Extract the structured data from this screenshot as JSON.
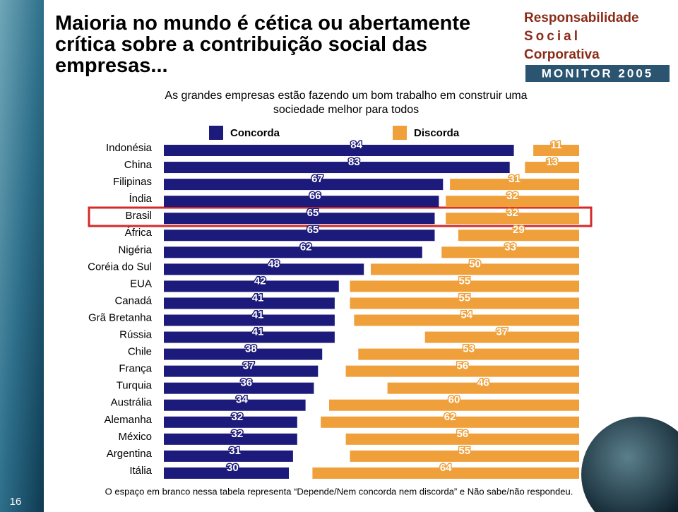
{
  "chart_data": {
    "type": "bar",
    "orientation": "horizontal",
    "title": "Maioria no mundo é cética ou abertamente crítica sobre a contribuição social das empresas...",
    "subtitle": "As grandes empresas estão fazendo um bom trabalho em construir uma sociedade melhor para todos",
    "categories": [
      "Indonésia",
      "China",
      "Filipinas",
      "Índia",
      "Brasil",
      "África",
      "Nigéria",
      "Coréia do Sul",
      "EUA",
      "Canadá",
      "Grã Bretanha",
      "Rússia",
      "Chile",
      "França",
      "Turquia",
      "Austrália",
      "Alemanha",
      "México",
      "Argentina",
      "Itália"
    ],
    "series": [
      {
        "name": "Concorda",
        "color": "#1c1a7a",
        "values": [
          84,
          83,
          67,
          66,
          65,
          65,
          62,
          48,
          42,
          41,
          41,
          41,
          38,
          37,
          36,
          34,
          32,
          32,
          31,
          30
        ]
      },
      {
        "name": "Discorda",
        "color": "#f0a03a",
        "values": [
          11,
          13,
          31,
          32,
          32,
          29,
          33,
          50,
          55,
          55,
          54,
          37,
          53,
          56,
          46,
          60,
          62,
          56,
          55,
          64
        ]
      }
    ],
    "footnote": "O espaço em branco nessa tabela representa “Depende/Nem concorda nem discorda” e Não sabe/não respondeu.",
    "page_number": "16",
    "logo": {
      "line1": "Responsabilidade",
      "line2": "Social",
      "line3": "Corporativa",
      "line4": "MONITOR 2005"
    }
  }
}
